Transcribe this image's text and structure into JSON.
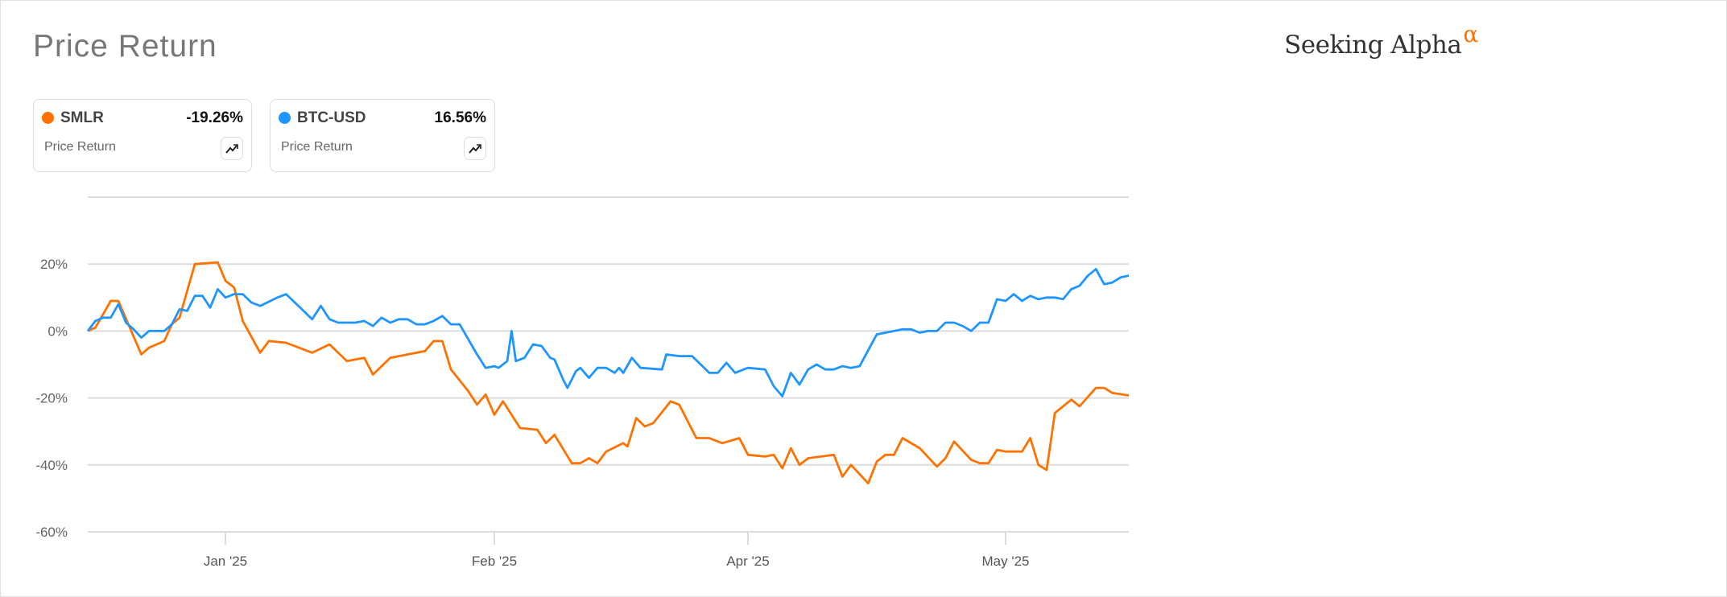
{
  "header": {
    "title": "Price Return",
    "logo_text": "Seeking Alpha",
    "logo_mark": "α"
  },
  "cards": [
    {
      "ticker": "SMLR",
      "value": "-19.26%",
      "label": "Price Return",
      "color": "#ff7200",
      "icon": "trend-chart-icon"
    },
    {
      "ticker": "BTC-USD",
      "value": "16.56%",
      "label": "Price Return",
      "color": "#1e95ff",
      "icon": "trend-chart-icon"
    }
  ],
  "chart_data": {
    "type": "line",
    "title": "",
    "xlabel": "",
    "ylabel": "",
    "ylim": [
      -60,
      40
    ],
    "xlim": [
      "2024-12-14",
      "2025-05-16"
    ],
    "grid": true,
    "y_ticks": [
      {
        "value": 20,
        "label": "20%"
      },
      {
        "value": 0,
        "label": "0%"
      },
      {
        "value": -20,
        "label": "-20%"
      },
      {
        "value": -40,
        "label": "-40%"
      },
      {
        "value": -60,
        "label": "-60%"
      }
    ],
    "x_ticks": [
      {
        "date": "2025-01-01",
        "label": "Jan '25"
      },
      {
        "date": "2025-02-01",
        "label": "Feb '25"
      },
      {
        "date": "2025-04-01",
        "label": "Apr '25"
      },
      {
        "date": "2025-05-01",
        "label": "May '25"
      }
    ],
    "series": [
      {
        "name": "SMLR",
        "color": "#ff7200",
        "points": [
          [
            "2024-12-14",
            0
          ],
          [
            "2024-12-15",
            1
          ],
          [
            "2024-12-17",
            9
          ],
          [
            "2024-12-18",
            9
          ],
          [
            "2024-12-21",
            -7
          ],
          [
            "2024-12-22",
            -5
          ],
          [
            "2024-12-24",
            -3
          ],
          [
            "2024-12-25",
            2
          ],
          [
            "2024-12-26",
            4
          ],
          [
            "2024-12-28",
            20
          ],
          [
            "2024-12-31",
            20.5
          ],
          [
            "2025-01-01",
            15
          ],
          [
            "2025-01-02",
            13
          ],
          [
            "2025-01-03",
            3
          ],
          [
            "2025-01-05",
            -6.5
          ],
          [
            "2025-01-06",
            -3
          ],
          [
            "2025-01-08",
            -3.5
          ],
          [
            "2025-01-11",
            -6.5
          ],
          [
            "2025-01-13",
            -4
          ],
          [
            "2025-01-15",
            -9
          ],
          [
            "2025-01-17",
            -8
          ],
          [
            "2025-01-18",
            -13
          ],
          [
            "2025-01-20",
            -8
          ],
          [
            "2025-01-22",
            -7
          ],
          [
            "2025-01-24",
            -6
          ],
          [
            "2025-01-25",
            -3
          ],
          [
            "2025-01-26",
            -3
          ],
          [
            "2025-01-27",
            -11.5
          ],
          [
            "2025-01-29",
            -18
          ],
          [
            "2025-01-30",
            -22
          ],
          [
            "2025-01-31",
            -19
          ],
          [
            "2025-02-01",
            -25
          ],
          [
            "2025-02-03",
            -21
          ],
          [
            "2025-02-07",
            -29
          ],
          [
            "2025-02-11",
            -29.5
          ],
          [
            "2025-02-13",
            -33.5
          ],
          [
            "2025-02-15",
            -31
          ],
          [
            "2025-02-19",
            -39.5
          ],
          [
            "2025-02-21",
            -39.5
          ],
          [
            "2025-02-23",
            -38
          ],
          [
            "2025-02-25",
            -39.5
          ],
          [
            "2025-02-27",
            -36
          ],
          [
            "2025-03-03",
            -33.5
          ],
          [
            "2025-03-04",
            -34.5
          ],
          [
            "2025-03-06",
            -26
          ],
          [
            "2025-03-08",
            -28.5
          ],
          [
            "2025-03-10",
            -27.5
          ],
          [
            "2025-03-14",
            -21
          ],
          [
            "2025-03-16",
            -22
          ],
          [
            "2025-03-20",
            -32
          ],
          [
            "2025-03-23",
            -32
          ],
          [
            "2025-03-26",
            -33.5
          ],
          [
            "2025-03-30",
            -32
          ],
          [
            "2025-04-01",
            -37
          ],
          [
            "2025-04-03",
            -37.5
          ],
          [
            "2025-04-04",
            -37
          ],
          [
            "2025-04-05",
            -41
          ],
          [
            "2025-04-06",
            -35
          ],
          [
            "2025-04-07",
            -40
          ],
          [
            "2025-04-08",
            -38
          ],
          [
            "2025-04-11",
            -37
          ],
          [
            "2025-04-12",
            -43.5
          ],
          [
            "2025-04-13",
            -40
          ],
          [
            "2025-04-15",
            -45.5
          ],
          [
            "2025-04-16",
            -39
          ],
          [
            "2025-04-17",
            -37
          ],
          [
            "2025-04-18",
            -37
          ],
          [
            "2025-04-19",
            -32
          ],
          [
            "2025-04-21",
            -35
          ],
          [
            "2025-04-23",
            -40.5
          ],
          [
            "2025-04-24",
            -38
          ],
          [
            "2025-04-25",
            -33
          ],
          [
            "2025-04-27",
            -38.5
          ],
          [
            "2025-04-28",
            -39.5
          ],
          [
            "2025-04-29",
            -39.5
          ],
          [
            "2025-04-30",
            -35.5
          ],
          [
            "2025-05-01",
            -36
          ],
          [
            "2025-05-03",
            -36
          ],
          [
            "2025-05-04",
            -32
          ],
          [
            "2025-05-05",
            -40
          ],
          [
            "2025-05-06",
            -41.5
          ],
          [
            "2025-05-07",
            -24.5
          ],
          [
            "2025-05-09",
            -20.5
          ],
          [
            "2025-05-10",
            -22.5
          ],
          [
            "2025-05-12",
            -17
          ],
          [
            "2025-05-13",
            -17
          ],
          [
            "2025-05-14",
            -18.5
          ],
          [
            "2025-05-16",
            -19.26
          ]
        ]
      },
      {
        "name": "BTC-USD",
        "color": "#1e95ff",
        "points": [
          [
            "2024-12-14",
            0
          ],
          [
            "2024-12-15",
            3
          ],
          [
            "2024-12-16",
            4
          ],
          [
            "2024-12-17",
            4
          ],
          [
            "2024-12-18",
            8
          ],
          [
            "2024-12-19",
            2.5
          ],
          [
            "2024-12-20",
            0.5
          ],
          [
            "2024-12-21",
            -2
          ],
          [
            "2024-12-22",
            0
          ],
          [
            "2024-12-24",
            0
          ],
          [
            "2024-12-25",
            2
          ],
          [
            "2024-12-26",
            6.5
          ],
          [
            "2024-12-27",
            6
          ],
          [
            "2024-12-28",
            10.5
          ],
          [
            "2024-12-29",
            10.5
          ],
          [
            "2024-12-30",
            7
          ],
          [
            "2024-12-31",
            12.5
          ],
          [
            "2025-01-01",
            10
          ],
          [
            "2025-01-02",
            11
          ],
          [
            "2025-01-03",
            11
          ],
          [
            "2025-01-04",
            8.5
          ],
          [
            "2025-01-05",
            7.5
          ],
          [
            "2025-01-07",
            10
          ],
          [
            "2025-01-08",
            11
          ],
          [
            "2025-01-09",
            8.5
          ],
          [
            "2025-01-10",
            6
          ],
          [
            "2025-01-11",
            3.5
          ],
          [
            "2025-01-12",
            7.5
          ],
          [
            "2025-01-13",
            3.5
          ],
          [
            "2025-01-14",
            2.5
          ],
          [
            "2025-01-16",
            2.5
          ],
          [
            "2025-01-17",
            3
          ],
          [
            "2025-01-18",
            1.5
          ],
          [
            "2025-01-19",
            4
          ],
          [
            "2025-01-20",
            2.5
          ],
          [
            "2025-01-21",
            3.5
          ],
          [
            "2025-01-22",
            3.5
          ],
          [
            "2025-01-23",
            2
          ],
          [
            "2025-01-24",
            2
          ],
          [
            "2025-01-25",
            3
          ],
          [
            "2025-01-26",
            4.5
          ],
          [
            "2025-01-27",
            2
          ],
          [
            "2025-01-28",
            2
          ],
          [
            "2025-01-29",
            -2.5
          ],
          [
            "2025-01-30",
            -7
          ],
          [
            "2025-01-31",
            -11
          ],
          [
            "2025-02-01",
            -10.5
          ],
          [
            "2025-02-02",
            -11
          ],
          [
            "2025-02-04",
            -9
          ],
          [
            "2025-02-05",
            0
          ],
          [
            "2025-02-06",
            -9
          ],
          [
            "2025-02-08",
            -8
          ],
          [
            "2025-02-10",
            -4
          ],
          [
            "2025-02-12",
            -4.5
          ],
          [
            "2025-02-14",
            -8
          ],
          [
            "2025-02-15",
            -8.5
          ],
          [
            "2025-02-17",
            -14.5
          ],
          [
            "2025-02-18",
            -17
          ],
          [
            "2025-02-20",
            -12
          ],
          [
            "2025-02-21",
            -11
          ],
          [
            "2025-02-23",
            -14
          ],
          [
            "2025-02-25",
            -11
          ],
          [
            "2025-02-27",
            -11
          ],
          [
            "2025-03-01",
            -12.5
          ],
          [
            "2025-03-02",
            -11
          ],
          [
            "2025-03-03",
            -12.5
          ],
          [
            "2025-03-05",
            -8
          ],
          [
            "2025-03-07",
            -11
          ],
          [
            "2025-03-12",
            -11.5
          ],
          [
            "2025-03-13",
            -7
          ],
          [
            "2025-03-16",
            -7.5
          ],
          [
            "2025-03-19",
            -7.5
          ],
          [
            "2025-03-21",
            -10
          ],
          [
            "2025-03-23",
            -12.5
          ],
          [
            "2025-03-25",
            -12.5
          ],
          [
            "2025-03-27",
            -9.5
          ],
          [
            "2025-03-29",
            -12.5
          ],
          [
            "2025-03-31",
            -11.5
          ],
          [
            "2025-04-01",
            -11
          ],
          [
            "2025-04-03",
            -11.5
          ],
          [
            "2025-04-04",
            -16.5
          ],
          [
            "2025-04-05",
            -19.5
          ],
          [
            "2025-04-06",
            -12.5
          ],
          [
            "2025-04-07",
            -16
          ],
          [
            "2025-04-08",
            -11.5
          ],
          [
            "2025-04-09",
            -10
          ],
          [
            "2025-04-10",
            -11.5
          ],
          [
            "2025-04-11",
            -11.5
          ],
          [
            "2025-04-12",
            -10.5
          ],
          [
            "2025-04-13",
            -11
          ],
          [
            "2025-04-14",
            -10.5
          ],
          [
            "2025-04-16",
            -1
          ],
          [
            "2025-04-17",
            -0.5
          ],
          [
            "2025-04-19",
            0.5
          ],
          [
            "2025-04-20",
            0.5
          ],
          [
            "2025-04-21",
            -0.5
          ],
          [
            "2025-04-22",
            0
          ],
          [
            "2025-04-23",
            0
          ],
          [
            "2025-04-24",
            2.5
          ],
          [
            "2025-04-25",
            2.5
          ],
          [
            "2025-04-26",
            1.5
          ],
          [
            "2025-04-27",
            0
          ],
          [
            "2025-04-28",
            2.5
          ],
          [
            "2025-04-29",
            2.5
          ],
          [
            "2025-04-30",
            9.5
          ],
          [
            "2025-05-01",
            9
          ],
          [
            "2025-05-02",
            11
          ],
          [
            "2025-05-03",
            9
          ],
          [
            "2025-05-04",
            10.5
          ],
          [
            "2025-05-05",
            9.5
          ],
          [
            "2025-05-06",
            10
          ],
          [
            "2025-05-07",
            10
          ],
          [
            "2025-05-08",
            9.5
          ],
          [
            "2025-05-09",
            12.5
          ],
          [
            "2025-05-10",
            13.5
          ],
          [
            "2025-05-11",
            16.5
          ],
          [
            "2025-05-12",
            18.5
          ],
          [
            "2025-05-13",
            14
          ],
          [
            "2025-05-14",
            14.5
          ],
          [
            "2025-05-15",
            16
          ],
          [
            "2025-05-16",
            16.56
          ]
        ]
      }
    ]
  }
}
